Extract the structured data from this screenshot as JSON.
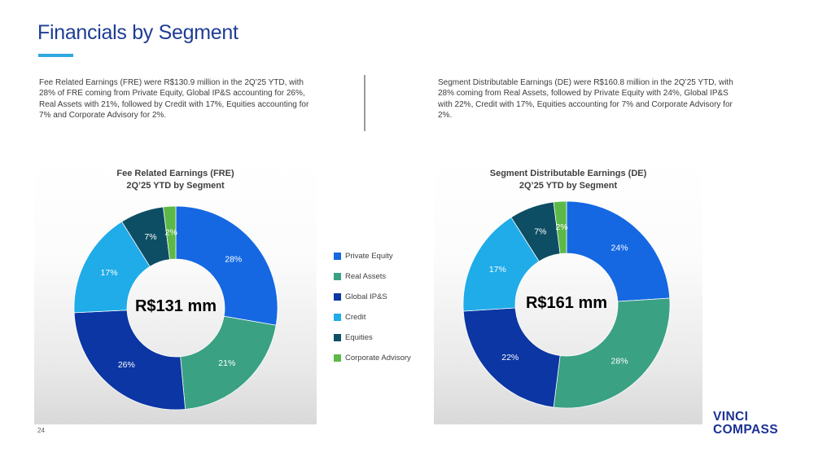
{
  "header": {
    "title": "Financials by Segment"
  },
  "summaries": {
    "left": "Fee Related Earnings (FRE) were R$130.9 million in the 2Q’25 YTD, with 28% of FRE coming from Private Equity, Global IP&S accounting for 26%, Real Assets with 21%, followed by Credit with 17%, Equities accounting for 7% and Corporate Advisory for 2%.",
    "right": "Segment Distributable Earnings (DE) were R$160.8 million in the 2Q’25 YTD, with 28% coming from Real Assets, followed by Private Equity with 24%, Global IP&S with 22%, Credit with 17%, Equities accounting for 7% and Corporate Advisory for 2%."
  },
  "theme": {
    "title_blue": "#1E3C96",
    "accent_underline": "#2EA9E0",
    "logo_navy": "#1B3193",
    "body_text": "#3C3C3C"
  },
  "chart_data": [
    {
      "type": "pie",
      "donut": true,
      "title": "Fee Related Earnings (FRE)",
      "subtitle": "2Q’25 YTD by Segment",
      "center_label": "R$131 mm",
      "total_text": "R$130.9 million",
      "categories": [
        "Private Equity",
        "Real Assets",
        "Global IP&S",
        "Credit",
        "Equities",
        "Corporate Advisory"
      ],
      "values": [
        28,
        21,
        26,
        17,
        7,
        2
      ],
      "unit": "%",
      "colors": [
        "#1568E2",
        "#3AA183",
        "#0B36A3",
        "#1FACE8",
        "#0E4E64",
        "#5CB947"
      ],
      "start_angle_deg": 0,
      "direction": "clockwise",
      "labels": [
        "28%",
        "21%",
        "26%",
        "17%",
        "7%",
        "2%"
      ]
    },
    {
      "type": "pie",
      "donut": true,
      "title": "Segment Distributable Earnings (DE)",
      "subtitle": "2Q’25 YTD by Segment",
      "center_label": "R$161 mm",
      "total_text": "R$160.8 million",
      "categories": [
        "Private Equity",
        "Real Assets",
        "Global IP&S",
        "Credit",
        "Equities",
        "Corporate Advisory"
      ],
      "values": [
        24,
        28,
        22,
        17,
        7,
        2
      ],
      "unit": "%",
      "colors": [
        "#1568E2",
        "#3AA183",
        "#0B36A3",
        "#1FACE8",
        "#0E4E64",
        "#5CB947"
      ],
      "start_angle_deg": 0,
      "direction": "clockwise",
      "labels": [
        "24%",
        "28%",
        "22%",
        "17%",
        "7%",
        "2%"
      ]
    }
  ],
  "legend": {
    "position": "between-charts",
    "items": [
      {
        "label": "Private Equity",
        "color": "#1568E2"
      },
      {
        "label": "Real Assets",
        "color": "#3AA183"
      },
      {
        "label": "Global IP&S",
        "color": "#0B36A3"
      },
      {
        "label": "Credit",
        "color": "#1FACE8"
      },
      {
        "label": "Equities",
        "color": "#0E4E64"
      },
      {
        "label": "Corporate Advisory",
        "color": "#5CB947"
      }
    ]
  },
  "footer": {
    "page_number": "24",
    "logo_line1": "VINCI",
    "logo_line2": "COMPASS"
  }
}
